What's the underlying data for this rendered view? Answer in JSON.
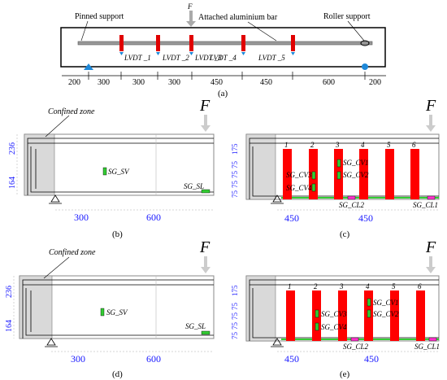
{
  "panel_a": {
    "force": "F",
    "pinned_support": "Pinned support",
    "attached_bar": "Attached aluminium bar",
    "roller_support": "Roller support",
    "lvdts": [
      "LVDT _1",
      "LVDT _2",
      "LVDT _3",
      "LVDT _4",
      "LVDT _5"
    ],
    "dimensions": [
      "200",
      "300",
      "300",
      "300",
      "450",
      "450",
      "600",
      "200"
    ],
    "caption": "(a)"
  },
  "panel_b": {
    "confined_zone": "Confined zone",
    "force": "F",
    "dims_vertical": [
      "236",
      "164"
    ],
    "gauges": [
      "SG_SV",
      "SG_SL"
    ],
    "dims_horizontal": [
      "300",
      "600"
    ],
    "caption": "(b)"
  },
  "panel_c": {
    "force": "F",
    "dims_vertical": [
      "175",
      "75",
      "75",
      "75",
      "75"
    ],
    "stirrup_numbers": [
      "1",
      "2",
      "3",
      "4",
      "5",
      "6"
    ],
    "gauges_left": [
      "SG_CV3",
      "SG_CV4"
    ],
    "gauges_right": [
      "SG_CV1",
      "SG_CV2"
    ],
    "gauges_bottom": [
      "SG_CL2",
      "SG_CL1"
    ],
    "dims_horizontal": [
      "450",
      "450"
    ],
    "caption": "(c)"
  },
  "panel_d": {
    "confined_zone": "Confined zone",
    "force": "F",
    "dims_vertical": [
      "236",
      "164"
    ],
    "gauges": [
      "SG_SV",
      "SG_SL"
    ],
    "dims_horizontal": [
      "300",
      "600"
    ],
    "caption": "(d)"
  },
  "panel_e": {
    "force": "F",
    "dims_vertical": [
      "175",
      "75",
      "75",
      "75",
      "75"
    ],
    "stirrup_numbers": [
      "1",
      "2",
      "3",
      "4",
      "5",
      "6"
    ],
    "gauges_left": [
      "SG_CV3",
      "SG_CV4"
    ],
    "gauges_right": [
      "SG_CV1",
      "SG_CV2"
    ],
    "gauges_bottom": [
      "SG_CL2",
      "SG_CL1"
    ],
    "dims_horizontal": [
      "450",
      "450"
    ],
    "caption": "(e)"
  },
  "colors": {
    "stirrup": "#ff0000",
    "gauge": "#33cc33",
    "gauge_pink": "#ff33cc",
    "dimension": "#1a1aff",
    "support_blue": "#1e88d8",
    "shade": "#d9d9d9"
  }
}
